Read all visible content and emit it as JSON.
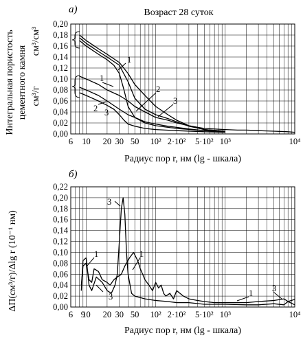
{
  "chart_data": [
    {
      "type": "line",
      "panel_label": "а)",
      "title": "Возраст 28 суток",
      "xlabel": "Радиус пор r, нм (lg - шкала)",
      "ylabel_lines": [
        "Интегральная пористость",
        "цементного камня"
      ],
      "y_units": [
        "см³/см³",
        "см³/г"
      ],
      "x_scale": "log",
      "xlim": [
        6,
        10000
      ],
      "ylim": [
        0,
        0.2
      ],
      "grid": true,
      "x_ticks": [
        {
          "value": 6,
          "label": "6"
        },
        {
          "value": 10,
          "label": "10"
        },
        {
          "value": 20,
          "label": "20"
        },
        {
          "value": 30,
          "label": "30"
        },
        {
          "value": 50,
          "label": "50"
        },
        {
          "value": 100,
          "label": "10²"
        },
        {
          "value": 200,
          "label": "2·10²"
        },
        {
          "value": 500,
          "label": "5·10²"
        },
        {
          "value": 1000,
          "label": "10³"
        },
        {
          "value": 10000,
          "label": "10⁴"
        }
      ],
      "y_ticks": [
        "0,00",
        "0,02",
        "0,04",
        "0,06",
        "0,08",
        "0,10",
        "0,12",
        "0,14",
        "0,16",
        "0,18",
        "0,20"
      ],
      "series": [
        {
          "label": "1",
          "group": "см³/см³",
          "x": [
            8,
            10,
            15,
            20,
            30,
            40,
            50,
            70,
            100,
            150,
            200,
            300,
            500,
            1000
          ],
          "y": [
            0.18,
            0.17,
            0.155,
            0.145,
            0.13,
            0.11,
            0.09,
            0.07,
            0.05,
            0.035,
            0.025,
            0.015,
            0.008,
            0.005
          ]
        },
        {
          "label": "2",
          "group": "см³/см³",
          "x": [
            8,
            10,
            15,
            20,
            30,
            40,
            50,
            70,
            100,
            150,
            200,
            300,
            500,
            1000
          ],
          "y": [
            0.175,
            0.165,
            0.15,
            0.14,
            0.125,
            0.095,
            0.065,
            0.045,
            0.035,
            0.028,
            0.022,
            0.014,
            0.008,
            0.005
          ]
        },
        {
          "label": "3",
          "group": "см³/см³",
          "x": [
            8,
            10,
            15,
            20,
            25,
            30,
            35,
            40,
            50,
            70,
            100,
            200,
            500,
            1000
          ],
          "y": [
            0.17,
            0.16,
            0.145,
            0.135,
            0.125,
            0.11,
            0.08,
            0.05,
            0.03,
            0.02,
            0.015,
            0.01,
            0.006,
            0.004
          ]
        },
        {
          "label": "1",
          "group": "см³/г",
          "x": [
            8,
            10,
            15,
            20,
            30,
            40,
            50,
            70,
            100,
            150,
            200,
            300,
            500,
            1000,
            1500,
            2000,
            3000,
            5000,
            8000,
            10000
          ],
          "y": [
            0.105,
            0.1,
            0.09,
            0.08,
            0.07,
            0.06,
            0.05,
            0.04,
            0.03,
            0.025,
            0.02,
            0.015,
            0.01,
            0.008,
            0.007,
            0.007,
            0.006,
            0.005,
            0.004,
            0.003
          ]
        },
        {
          "label": "2",
          "group": "см³/г",
          "x": [
            8,
            10,
            15,
            20,
            30,
            40,
            50,
            70,
            100,
            150,
            200,
            300,
            500,
            1000
          ],
          "y": [
            0.085,
            0.08,
            0.07,
            0.06,
            0.045,
            0.035,
            0.03,
            0.022,
            0.018,
            0.014,
            0.012,
            0.009,
            0.006,
            0.004
          ]
        },
        {
          "label": "3",
          "group": "см³/г",
          "x": [
            8,
            10,
            15,
            20,
            25,
            30,
            35,
            40,
            50,
            70,
            100,
            200,
            500,
            1000
          ],
          "y": [
            0.075,
            0.07,
            0.06,
            0.052,
            0.045,
            0.035,
            0.025,
            0.018,
            0.014,
            0.01,
            0.008,
            0.006,
            0.004,
            0.003
          ]
        }
      ]
    },
    {
      "type": "line",
      "panel_label": "б)",
      "xlabel": "Радиус пор r, нм (lg - шкала)",
      "ylabel": "ΔП(см³/г)/Δlg r (10⁻¹ нм)",
      "x_scale": "log",
      "xlim": [
        6,
        10000
      ],
      "ylim": [
        0,
        0.22
      ],
      "grid": true,
      "x_ticks": [
        {
          "value": 6,
          "label": "6"
        },
        {
          "value": 9,
          "label": "9"
        },
        {
          "value": 10,
          "label": "10"
        },
        {
          "value": 20,
          "label": "20"
        },
        {
          "value": 30,
          "label": "30"
        },
        {
          "value": 50,
          "label": "50"
        },
        {
          "value": 100,
          "label": "10²"
        },
        {
          "value": 200,
          "label": "2·10²"
        },
        {
          "value": 500,
          "label": "5·10²"
        },
        {
          "value": 1000,
          "label": "10³"
        },
        {
          "value": 10000,
          "label": "10⁴"
        }
      ],
      "y_ticks": [
        "0,00",
        "0,02",
        "0,04",
        "0,06",
        "0,08",
        "0,10",
        "0,12",
        "0,14",
        "0,16",
        "0,18",
        "0,20",
        "0,22"
      ],
      "series": [
        {
          "label": "1",
          "x": [
            8.5,
            9,
            10,
            11,
            12,
            13,
            15,
            17,
            20,
            22,
            25,
            28,
            32,
            36,
            42,
            48,
            55,
            60,
            70,
            80,
            90,
            100,
            110,
            120,
            130,
            140,
            160,
            180,
            200,
            250,
            300,
            400,
            500,
            700,
            1000,
            2000,
            3000,
            5000,
            7000,
            8000,
            10000
          ],
          "y": [
            0.04,
            0.075,
            0.08,
            0.05,
            0.045,
            0.07,
            0.065,
            0.05,
            0.045,
            0.04,
            0.05,
            0.055,
            0.06,
            0.075,
            0.09,
            0.1,
            0.085,
            0.07,
            0.05,
            0.04,
            0.03,
            0.045,
            0.035,
            0.04,
            0.025,
            0.02,
            0.025,
            0.015,
            0.03,
            0.02,
            0.015,
            0.012,
            0.01,
            0.008,
            0.008,
            0.008,
            0.01,
            0.012,
            0.015,
            0.01,
            0.014
          ]
        },
        {
          "label": "3",
          "x": [
            8.5,
            9,
            10,
            11,
            12,
            14,
            17,
            20,
            23,
            26,
            28,
            30,
            32,
            34,
            36,
            38,
            40,
            45,
            50,
            70,
            100,
            150,
            200,
            300,
            500,
            1000,
            2000,
            3000,
            5000,
            7000,
            8000,
            10000
          ],
          "y": [
            0.03,
            0.085,
            0.09,
            0.04,
            0.03,
            0.055,
            0.045,
            0.03,
            0.025,
            0.04,
            0.06,
            0.12,
            0.18,
            0.2,
            0.17,
            0.1,
            0.06,
            0.025,
            0.02,
            0.015,
            0.012,
            0.01,
            0.008,
            0.008,
            0.005,
            0.005,
            0.004,
            0.004,
            0.006,
            0.004,
            0.01,
            0.004
          ]
        }
      ]
    }
  ]
}
